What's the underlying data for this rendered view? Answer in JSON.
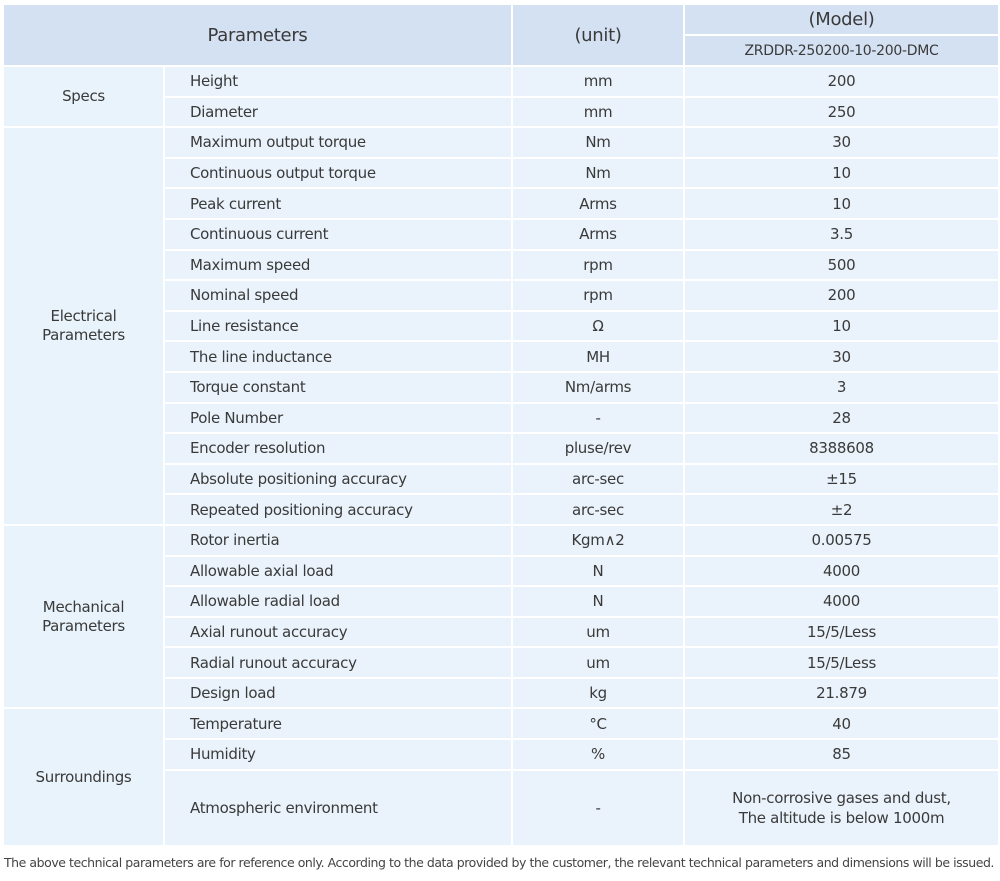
{
  "table": {
    "header": {
      "parameters": "Parameters",
      "unit": "(unit)",
      "model_title": "(Model)",
      "model_name": "ZRDDR-250200-10-200-DMC"
    },
    "groups": [
      {
        "name": "Specs",
        "rows": [
          [
            "Height",
            "mm",
            "200"
          ],
          [
            "Diameter",
            "mm",
            "250"
          ]
        ]
      },
      {
        "name": "Electrical Parameters",
        "rows": [
          [
            "Maximum output torque",
            "Nm",
            "30"
          ],
          [
            "Continuous output torque",
            "Nm",
            "10"
          ],
          [
            "Peak current",
            "Arms",
            "10"
          ],
          [
            "Continuous current",
            "Arms",
            "3.5"
          ],
          [
            "Maximum speed",
            "rpm",
            "500"
          ],
          [
            "Nominal speed",
            "rpm",
            "200"
          ],
          [
            "Line resistance",
            "Ω",
            "10"
          ],
          [
            "The line inductance",
            "MH",
            "30"
          ],
          [
            "Torque constant",
            "Nm/arms",
            "3"
          ],
          [
            "Pole Number",
            "-",
            "28"
          ],
          [
            "Encoder resolution",
            "pluse/rev",
            "8388608"
          ],
          [
            "Absolute positioning accuracy",
            "arc-sec",
            "±15"
          ],
          [
            "Repeated positioning accuracy",
            "arc-sec",
            "±2"
          ]
        ]
      },
      {
        "name": "Mechanical Parameters",
        "rows": [
          [
            "Rotor inertia",
            "Kgm∧2",
            "0.00575"
          ],
          [
            "Allowable axial load",
            "N",
            "4000"
          ],
          [
            "Allowable radial load",
            "N",
            "4000"
          ],
          [
            "Axial runout accuracy",
            "um",
            "15/5/Less"
          ],
          [
            "Radial runout accuracy",
            "um",
            "15/5/Less"
          ],
          [
            "Design load",
            "kg",
            "21.879"
          ]
        ]
      },
      {
        "name": "Surroundings",
        "rows": [
          [
            "Temperature",
            "°C",
            "40"
          ],
          [
            "Humidity",
            "%",
            "85"
          ],
          [
            "Atmospheric environment",
            "-",
            "Non-corrosive gases and dust,\nThe altitude is below 1000m"
          ]
        ]
      }
    ]
  },
  "footer": "The above technical parameters are for reference only. According to the data provided by the customer, the relevant technical parameters and dimensions will be issued."
}
